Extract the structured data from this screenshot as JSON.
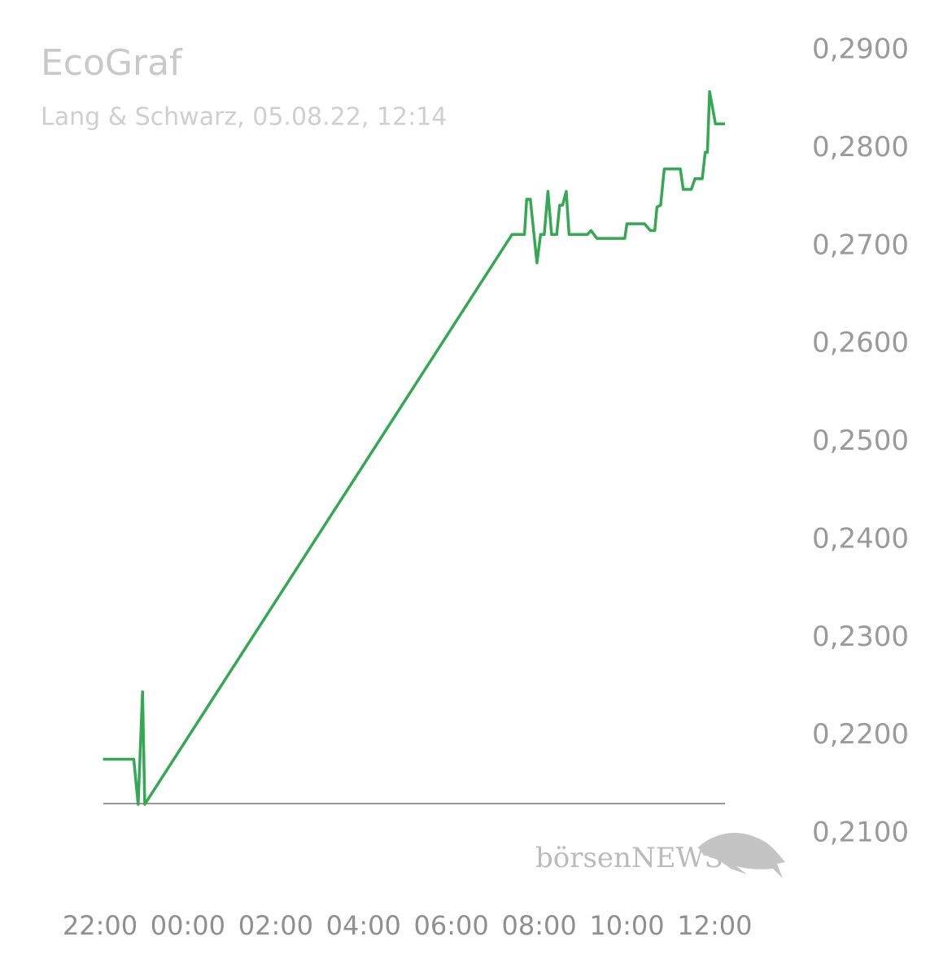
{
  "chart_data": {
    "type": "line",
    "title": "EcoGraf",
    "subtitle": "Lang & Schwarz, 05.08.22, 12:14",
    "watermark": "börsenNEWS",
    "x": [
      "22:04",
      "22:46",
      "22:52",
      "22:58",
      "23:01",
      "07:23",
      "07:40",
      "07:43",
      "07:48",
      "07:57",
      "08:02",
      "08:07",
      "08:12",
      "08:17",
      "08:24",
      "08:28",
      "08:32",
      "08:37",
      "08:41",
      "09:06",
      "09:11",
      "09:19",
      "09:57",
      "10:00",
      "10:24",
      "10:32",
      "10:38",
      "10:41",
      "10:46",
      "10:51",
      "11:13",
      "11:17",
      "11:28",
      "11:33",
      "11:43",
      "11:47",
      "11:50",
      "11:53",
      "12:01",
      "12:14"
    ],
    "series": [
      {
        "name": "EcoGraf",
        "color": "#34a853",
        "values": [
          0.2176,
          0.2176,
          0.213,
          0.2245,
          0.213,
          0.2712,
          0.2712,
          0.2748,
          0.2748,
          0.2683,
          0.2712,
          0.2712,
          0.2756,
          0.2712,
          0.2712,
          0.2742,
          0.2742,
          0.2756,
          0.2712,
          0.2712,
          0.2716,
          0.2708,
          0.2708,
          0.2723,
          0.2723,
          0.2716,
          0.2716,
          0.274,
          0.2742,
          0.2779,
          0.2779,
          0.2758,
          0.2758,
          0.2769,
          0.2769,
          0.2796,
          0.2796,
          0.2858,
          0.2825,
          0.2825
        ]
      }
    ],
    "xlim": [
      "22:00",
      "12:14"
    ],
    "xticks": [
      "22:00",
      "00:00",
      "02:00",
      "04:00",
      "06:00",
      "08:00",
      "10:00",
      "12:00"
    ],
    "ylim": [
      0.21,
      0.29
    ],
    "yticks": [
      {
        "value": 0.29,
        "label": "0,2900"
      },
      {
        "value": 0.28,
        "label": "0,2800"
      },
      {
        "value": 0.27,
        "label": "0,2700"
      },
      {
        "value": 0.26,
        "label": "0,2600"
      },
      {
        "value": 0.25,
        "label": "0,2500"
      },
      {
        "value": 0.24,
        "label": "0,2400"
      },
      {
        "value": 0.23,
        "label": "0,2300"
      },
      {
        "value": 0.22,
        "label": "0,2200"
      },
      {
        "value": 0.21,
        "label": "0,2100"
      }
    ],
    "grid": false
  }
}
